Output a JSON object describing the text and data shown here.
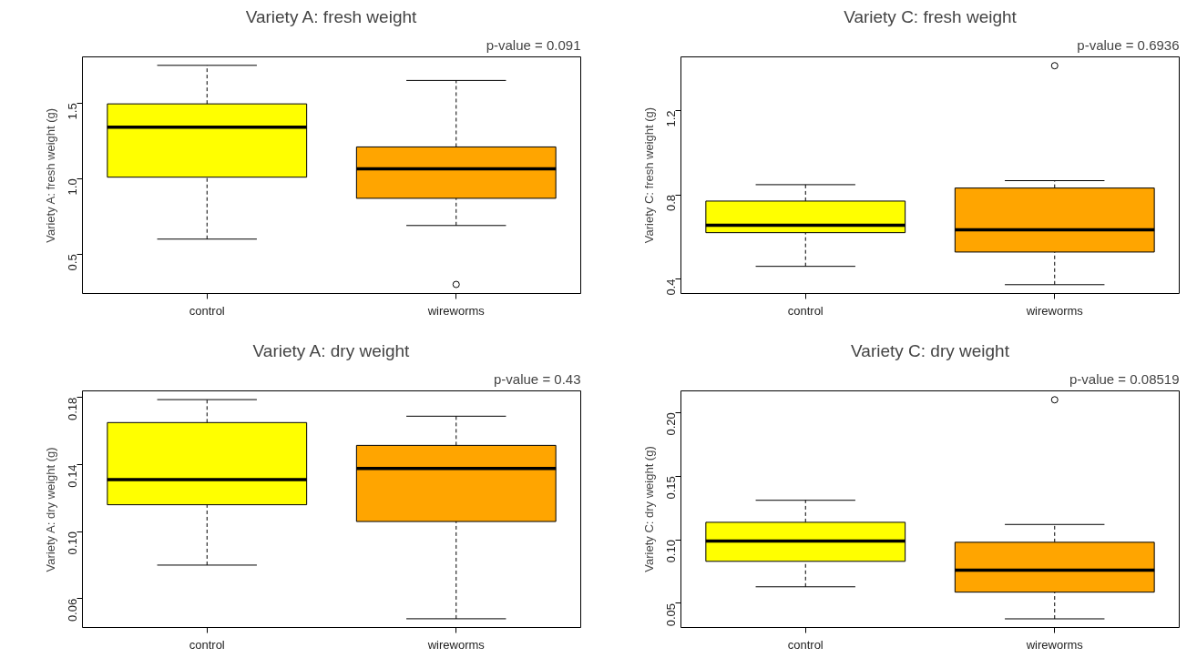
{
  "chart_data": [
    {
      "type": "box",
      "title": "Variety A: fresh weight",
      "ylabel": "Variety A: fresh weight (g)",
      "annotations": [
        "p-value = 0.091"
      ],
      "categories": [
        "control",
        "wireworms"
      ],
      "colors": [
        "#ffff00",
        "#ffa500"
      ],
      "ylim": [
        0.24,
        1.806
      ],
      "yticks": [
        0.5,
        {
          "value": 1,
          "label": "1.0"
        },
        1.5
      ],
      "grid": false,
      "line_style": "dashed",
      "boxes": [
        {
          "low": 0.6,
          "q1": 1.01,
          "median": 1.34,
          "q3": 1.495,
          "high": 1.75
        },
        {
          "low": 0.69,
          "q1": 0.87,
          "median": 1.065,
          "q3": 1.21,
          "high": 1.65,
          "outliers": [
            0.3
          ]
        }
      ]
    },
    {
      "type": "box",
      "title": "Variety C: fresh weight",
      "ylabel": "Variety C: fresh weight (g)",
      "annotations": [
        "p-value = 0.6936"
      ],
      "categories": [
        "control",
        "wireworms"
      ],
      "colors": [
        "#ffff00",
        "#ffa500"
      ],
      "ylim": [
        0.331,
        1.455
      ],
      "yticks": [
        0.4,
        0.8,
        1.2
      ],
      "grid": false,
      "line_style": "dashed",
      "boxes": [
        {
          "low": 0.46,
          "q1": 0.62,
          "median": 0.655,
          "q3": 0.77,
          "high": 0.848
        },
        {
          "low": 0.373,
          "q1": 0.528,
          "median": 0.634,
          "q3": 0.832,
          "high": 0.867,
          "outliers": [
            1.413
          ]
        }
      ]
    },
    {
      "type": "box",
      "title": "Variety A: dry weight",
      "ylabel": "Variety A: dry weight (g)",
      "annotations": [
        "p-value = 0.43"
      ],
      "categories": [
        "control",
        "wireworms"
      ],
      "colors": [
        "#ffff00",
        "#ffa500"
      ],
      "ylim": [
        0.0428,
        0.1839
      ],
      "yticks": [
        0.06,
        {
          "value": 0.1,
          "label": "0.10"
        },
        0.14,
        0.18
      ],
      "grid": false,
      "line_style": "dashed",
      "boxes": [
        {
          "low": 0.08,
          "q1": 0.116,
          "median": 0.131,
          "q3": 0.165,
          "high": 0.1787
        },
        {
          "low": 0.048,
          "q1": 0.106,
          "median": 0.1377,
          "q3": 0.1514,
          "high": 0.1688
        }
      ]
    },
    {
      "type": "box",
      "title": "Variety C: dry weight",
      "ylabel": "Variety C: dry weight (g)",
      "annotations": [
        "p-value = 0.08519"
      ],
      "categories": [
        "control",
        "wireworms"
      ],
      "colors": [
        "#ffff00",
        "#ffa500"
      ],
      "ylim": [
        0.031,
        0.217
      ],
      "yticks": [
        0.05,
        {
          "value": 0.1,
          "label": "0.10"
        },
        0.15,
        {
          "value": 0.2,
          "label": "0.20"
        }
      ],
      "grid": false,
      "line_style": "dashed",
      "boxes": [
        {
          "low": 0.063,
          "q1": 0.083,
          "median": 0.099,
          "q3": 0.1137,
          "high": 0.131
        },
        {
          "low": 0.0378,
          "q1": 0.0588,
          "median": 0.076,
          "q3": 0.098,
          "high": 0.112,
          "outliers": [
            0.21
          ]
        }
      ]
    }
  ]
}
